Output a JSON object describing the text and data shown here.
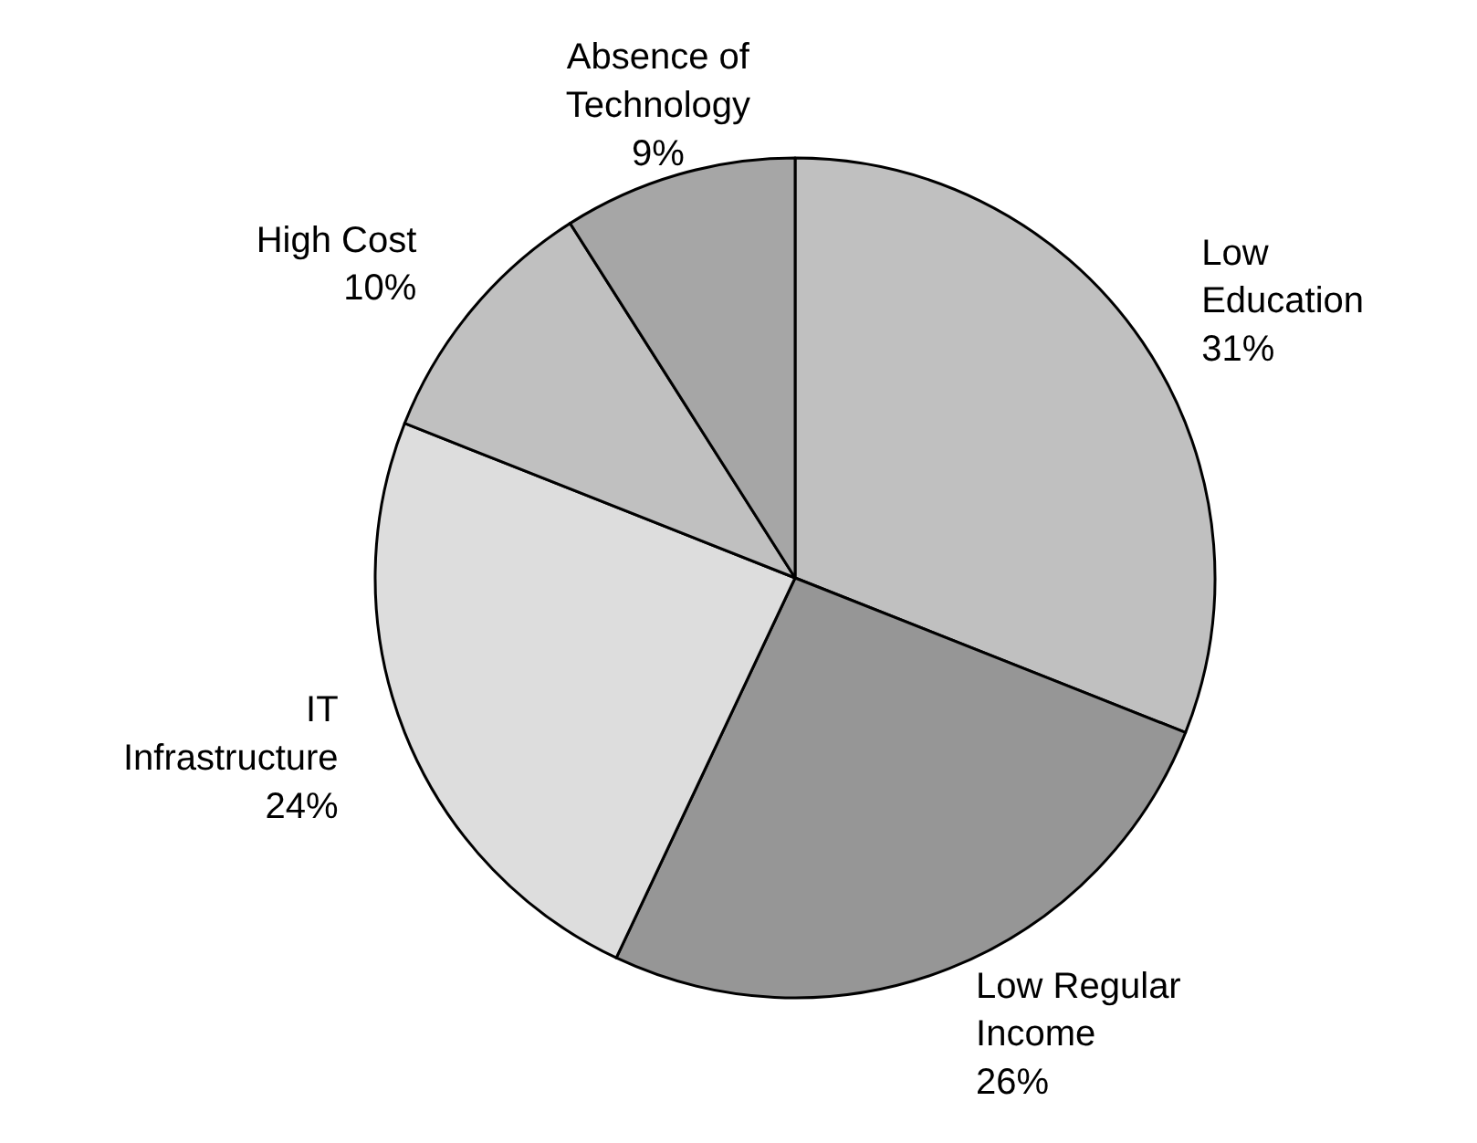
{
  "chart_data": {
    "type": "pie",
    "categories": [
      "Low Education",
      "Low Regular Income",
      "IT Infrastructure",
      "High Cost",
      "Absence of Technology"
    ],
    "values": [
      31,
      26,
      24,
      10,
      9
    ],
    "value_labels": [
      "31%",
      "26%",
      "24%",
      "10%",
      "9%"
    ],
    "colors": [
      "#c0c0c0",
      "#969696",
      "#dddddd",
      "#c0c0c0",
      "#a6a6a6"
    ]
  }
}
